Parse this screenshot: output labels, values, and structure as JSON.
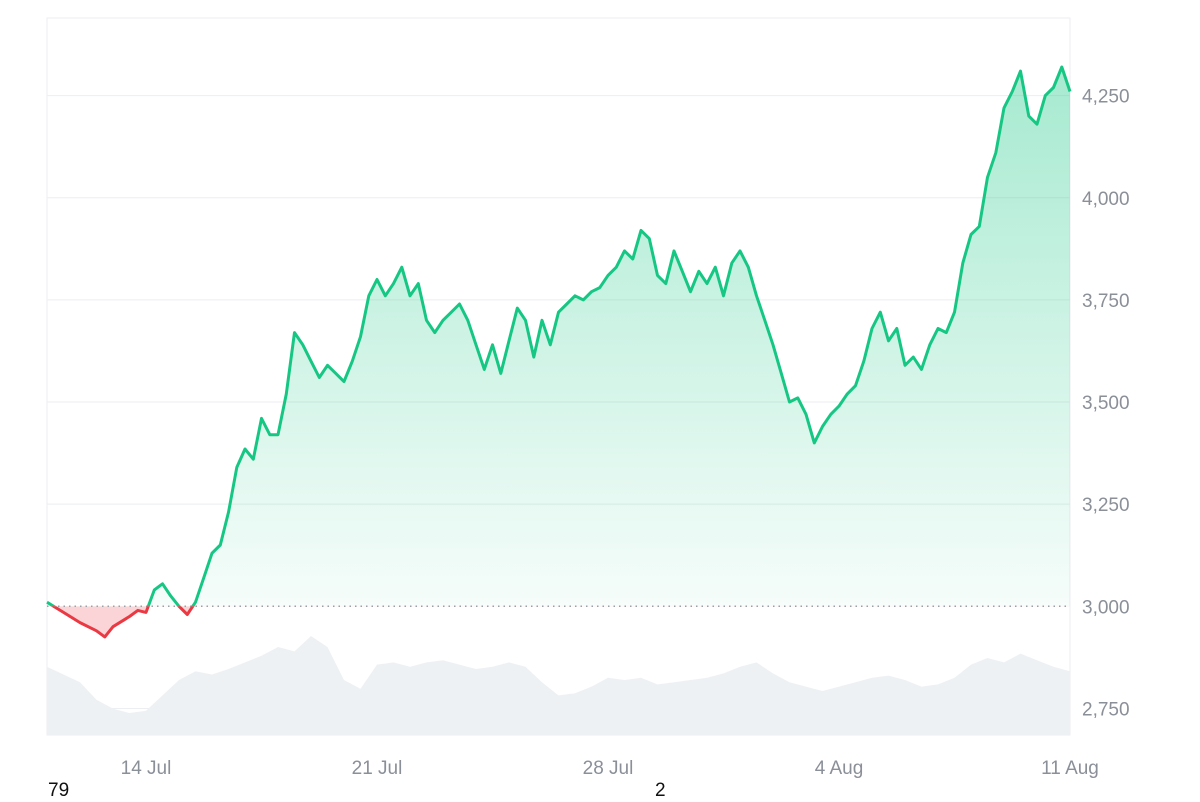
{
  "chart_data": {
    "type": "area",
    "baseline": 3000,
    "ylim": [
      2685,
      4440
    ],
    "yticks": [
      2750,
      3000,
      3250,
      3500,
      3750,
      4000,
      4250
    ],
    "yticklabels": [
      "2,750",
      "3,000",
      "3,250",
      "3,500",
      "3,750",
      "4,000",
      "4,250"
    ],
    "xticks": [
      "14 Jul",
      "21 Jul",
      "28 Jul",
      "4 Aug",
      "11 Aug"
    ],
    "x_start": "11 Jul",
    "x_end": "11 Aug",
    "price": [
      [
        "11 Jul 00:00",
        3010
      ],
      [
        "11 Jul 12:00",
        2985
      ],
      [
        "12 Jul 00:00",
        2960
      ],
      [
        "12 Jul 12:00",
        2940
      ],
      [
        "12 Jul 18:00",
        2925
      ],
      [
        "13 Jul 00:00",
        2950
      ],
      [
        "13 Jul 12:00",
        2975
      ],
      [
        "13 Jul 18:00",
        2990
      ],
      [
        "14 Jul 00:00",
        2985
      ],
      [
        "14 Jul 06:00",
        3040
      ],
      [
        "14 Jul 12:00",
        3055
      ],
      [
        "14 Jul 18:00",
        3025
      ],
      [
        "15 Jul 00:00",
        3000
      ],
      [
        "15 Jul 06:00",
        2980
      ],
      [
        "15 Jul 12:00",
        3010
      ],
      [
        "15 Jul 18:00",
        3070
      ],
      [
        "16 Jul 00:00",
        3130
      ],
      [
        "16 Jul 06:00",
        3150
      ],
      [
        "16 Jul 12:00",
        3230
      ],
      [
        "16 Jul 18:00",
        3340
      ],
      [
        "17 Jul 00:00",
        3385
      ],
      [
        "17 Jul 06:00",
        3360
      ],
      [
        "17 Jul 12:00",
        3460
      ],
      [
        "17 Jul 18:00",
        3420
      ],
      [
        "18 Jul 00:00",
        3420
      ],
      [
        "18 Jul 06:00",
        3520
      ],
      [
        "18 Jul 12:00",
        3670
      ],
      [
        "18 Jul 18:00",
        3640
      ],
      [
        "19 Jul 00:00",
        3600
      ],
      [
        "19 Jul 06:00",
        3560
      ],
      [
        "19 Jul 12:00",
        3590
      ],
      [
        "19 Jul 18:00",
        3570
      ],
      [
        "20 Jul 00:00",
        3550
      ],
      [
        "20 Jul 06:00",
        3600
      ],
      [
        "20 Jul 12:00",
        3660
      ],
      [
        "20 Jul 18:00",
        3760
      ],
      [
        "21 Jul 00:00",
        3800
      ],
      [
        "21 Jul 06:00",
        3760
      ],
      [
        "21 Jul 12:00",
        3790
      ],
      [
        "21 Jul 18:00",
        3830
      ],
      [
        "22 Jul 00:00",
        3760
      ],
      [
        "22 Jul 06:00",
        3790
      ],
      [
        "22 Jul 12:00",
        3700
      ],
      [
        "22 Jul 18:00",
        3670
      ],
      [
        "23 Jul 00:00",
        3700
      ],
      [
        "23 Jul 06:00",
        3720
      ],
      [
        "23 Jul 12:00",
        3740
      ],
      [
        "23 Jul 18:00",
        3700
      ],
      [
        "24 Jul 00:00",
        3640
      ],
      [
        "24 Jul 06:00",
        3580
      ],
      [
        "24 Jul 12:00",
        3640
      ],
      [
        "24 Jul 18:00",
        3570
      ],
      [
        "25 Jul 00:00",
        3650
      ],
      [
        "25 Jul 06:00",
        3730
      ],
      [
        "25 Jul 12:00",
        3700
      ],
      [
        "25 Jul 18:00",
        3610
      ],
      [
        "26 Jul 00:00",
        3700
      ],
      [
        "26 Jul 06:00",
        3640
      ],
      [
        "26 Jul 12:00",
        3720
      ],
      [
        "26 Jul 18:00",
        3740
      ],
      [
        "27 Jul 00:00",
        3760
      ],
      [
        "27 Jul 06:00",
        3750
      ],
      [
        "27 Jul 12:00",
        3770
      ],
      [
        "27 Jul 18:00",
        3780
      ],
      [
        "28 Jul 00:00",
        3810
      ],
      [
        "28 Jul 06:00",
        3830
      ],
      [
        "28 Jul 12:00",
        3870
      ],
      [
        "28 Jul 18:00",
        3850
      ],
      [
        "29 Jul 00:00",
        3920
      ],
      [
        "29 Jul 06:00",
        3900
      ],
      [
        "29 Jul 12:00",
        3810
      ],
      [
        "29 Jul 18:00",
        3790
      ],
      [
        "30 Jul 00:00",
        3870
      ],
      [
        "30 Jul 06:00",
        3820
      ],
      [
        "30 Jul 12:00",
        3770
      ],
      [
        "30 Jul 18:00",
        3820
      ],
      [
        "31 Jul 00:00",
        3790
      ],
      [
        "31 Jul 06:00",
        3830
      ],
      [
        "31 Jul 12:00",
        3760
      ],
      [
        "31 Jul 18:00",
        3840
      ],
      [
        "1 Aug 00:00",
        3870
      ],
      [
        "1 Aug 06:00",
        3830
      ],
      [
        "1 Aug 12:00",
        3760
      ],
      [
        "1 Aug 18:00",
        3700
      ],
      [
        "2 Aug 00:00",
        3640
      ],
      [
        "2 Aug 06:00",
        3570
      ],
      [
        "2 Aug 12:00",
        3500
      ],
      [
        "2 Aug 18:00",
        3510
      ],
      [
        "3 Aug 00:00",
        3470
      ],
      [
        "3 Aug 06:00",
        3400
      ],
      [
        "3 Aug 12:00",
        3440
      ],
      [
        "3 Aug 18:00",
        3470
      ],
      [
        "4 Aug 00:00",
        3490
      ],
      [
        "4 Aug 06:00",
        3520
      ],
      [
        "4 Aug 12:00",
        3540
      ],
      [
        "4 Aug 18:00",
        3600
      ],
      [
        "5 Aug 00:00",
        3680
      ],
      [
        "5 Aug 06:00",
        3720
      ],
      [
        "5 Aug 12:00",
        3650
      ],
      [
        "5 Aug 18:00",
        3680
      ],
      [
        "6 Aug 00:00",
        3590
      ],
      [
        "6 Aug 06:00",
        3610
      ],
      [
        "6 Aug 12:00",
        3580
      ],
      [
        "6 Aug 18:00",
        3640
      ],
      [
        "7 Aug 00:00",
        3680
      ],
      [
        "7 Aug 06:00",
        3670
      ],
      [
        "7 Aug 12:00",
        3720
      ],
      [
        "7 Aug 18:00",
        3840
      ],
      [
        "8 Aug 00:00",
        3910
      ],
      [
        "8 Aug 06:00",
        3930
      ],
      [
        "8 Aug 12:00",
        4050
      ],
      [
        "8 Aug 18:00",
        4110
      ],
      [
        "9 Aug 00:00",
        4220
      ],
      [
        "9 Aug 06:00",
        4260
      ],
      [
        "9 Aug 12:00",
        4310
      ],
      [
        "9 Aug 18:00",
        4200
      ],
      [
        "10 Aug 00:00",
        4180
      ],
      [
        "10 Aug 06:00",
        4250
      ],
      [
        "10 Aug 12:00",
        4270
      ],
      [
        "10 Aug 18:00",
        4320
      ],
      [
        "11 Aug 00:00",
        4260
      ]
    ],
    "volume": [
      [
        "11 Jul 00:00",
        0.62
      ],
      [
        "12 Jul 00:00",
        0.48
      ],
      [
        "12 Jul 12:00",
        0.32
      ],
      [
        "13 Jul 00:00",
        0.24
      ],
      [
        "13 Jul 12:00",
        0.2
      ],
      [
        "14 Jul 00:00",
        0.22
      ],
      [
        "14 Jul 12:00",
        0.36
      ],
      [
        "15 Jul 00:00",
        0.5
      ],
      [
        "15 Jul 12:00",
        0.58
      ],
      [
        "16 Jul 00:00",
        0.55
      ],
      [
        "16 Jul 12:00",
        0.6
      ],
      [
        "17 Jul 00:00",
        0.66
      ],
      [
        "17 Jul 12:00",
        0.72
      ],
      [
        "18 Jul 00:00",
        0.8
      ],
      [
        "18 Jul 12:00",
        0.76
      ],
      [
        "19 Jul 00:00",
        0.9
      ],
      [
        "19 Jul 12:00",
        0.8
      ],
      [
        "20 Jul 00:00",
        0.5
      ],
      [
        "20 Jul 12:00",
        0.42
      ],
      [
        "21 Jul 00:00",
        0.64
      ],
      [
        "21 Jul 12:00",
        0.66
      ],
      [
        "22 Jul 00:00",
        0.62
      ],
      [
        "22 Jul 12:00",
        0.66
      ],
      [
        "23 Jul 00:00",
        0.68
      ],
      [
        "23 Jul 12:00",
        0.64
      ],
      [
        "24 Jul 00:00",
        0.6
      ],
      [
        "24 Jul 12:00",
        0.62
      ],
      [
        "25 Jul 00:00",
        0.66
      ],
      [
        "25 Jul 12:00",
        0.62
      ],
      [
        "26 Jul 00:00",
        0.48
      ],
      [
        "26 Jul 12:00",
        0.36
      ],
      [
        "27 Jul 00:00",
        0.38
      ],
      [
        "27 Jul 12:00",
        0.44
      ],
      [
        "28 Jul 00:00",
        0.52
      ],
      [
        "28 Jul 12:00",
        0.5
      ],
      [
        "29 Jul 00:00",
        0.52
      ],
      [
        "29 Jul 12:00",
        0.46
      ],
      [
        "30 Jul 00:00",
        0.48
      ],
      [
        "30 Jul 12:00",
        0.5
      ],
      [
        "31 Jul 00:00",
        0.52
      ],
      [
        "31 Jul 12:00",
        0.56
      ],
      [
        "1 Aug 00:00",
        0.62
      ],
      [
        "1 Aug 12:00",
        0.66
      ],
      [
        "2 Aug 00:00",
        0.56
      ],
      [
        "2 Aug 12:00",
        0.48
      ],
      [
        "3 Aug 00:00",
        0.44
      ],
      [
        "3 Aug 12:00",
        0.4
      ],
      [
        "4 Aug 00:00",
        0.44
      ],
      [
        "4 Aug 12:00",
        0.48
      ],
      [
        "5 Aug 00:00",
        0.52
      ],
      [
        "5 Aug 12:00",
        0.54
      ],
      [
        "6 Aug 00:00",
        0.5
      ],
      [
        "6 Aug 12:00",
        0.44
      ],
      [
        "7 Aug 00:00",
        0.46
      ],
      [
        "7 Aug 12:00",
        0.52
      ],
      [
        "8 Aug 00:00",
        0.64
      ],
      [
        "8 Aug 12:00",
        0.7
      ],
      [
        "9 Aug 00:00",
        0.66
      ],
      [
        "9 Aug 12:00",
        0.74
      ],
      [
        "10 Aug 00:00",
        0.68
      ],
      [
        "10 Aug 12:00",
        0.62
      ],
      [
        "11 Aug 00:00",
        0.58
      ]
    ],
    "colors": {
      "up": "#16c784",
      "down": "#ea3943",
      "volume": "#eef1f4",
      "grid": "#eceef1",
      "baseline": "#9aa0a6",
      "tick": "#8a8f98"
    },
    "grid": true
  },
  "corner_labels": {
    "left": "79",
    "center": "2"
  }
}
